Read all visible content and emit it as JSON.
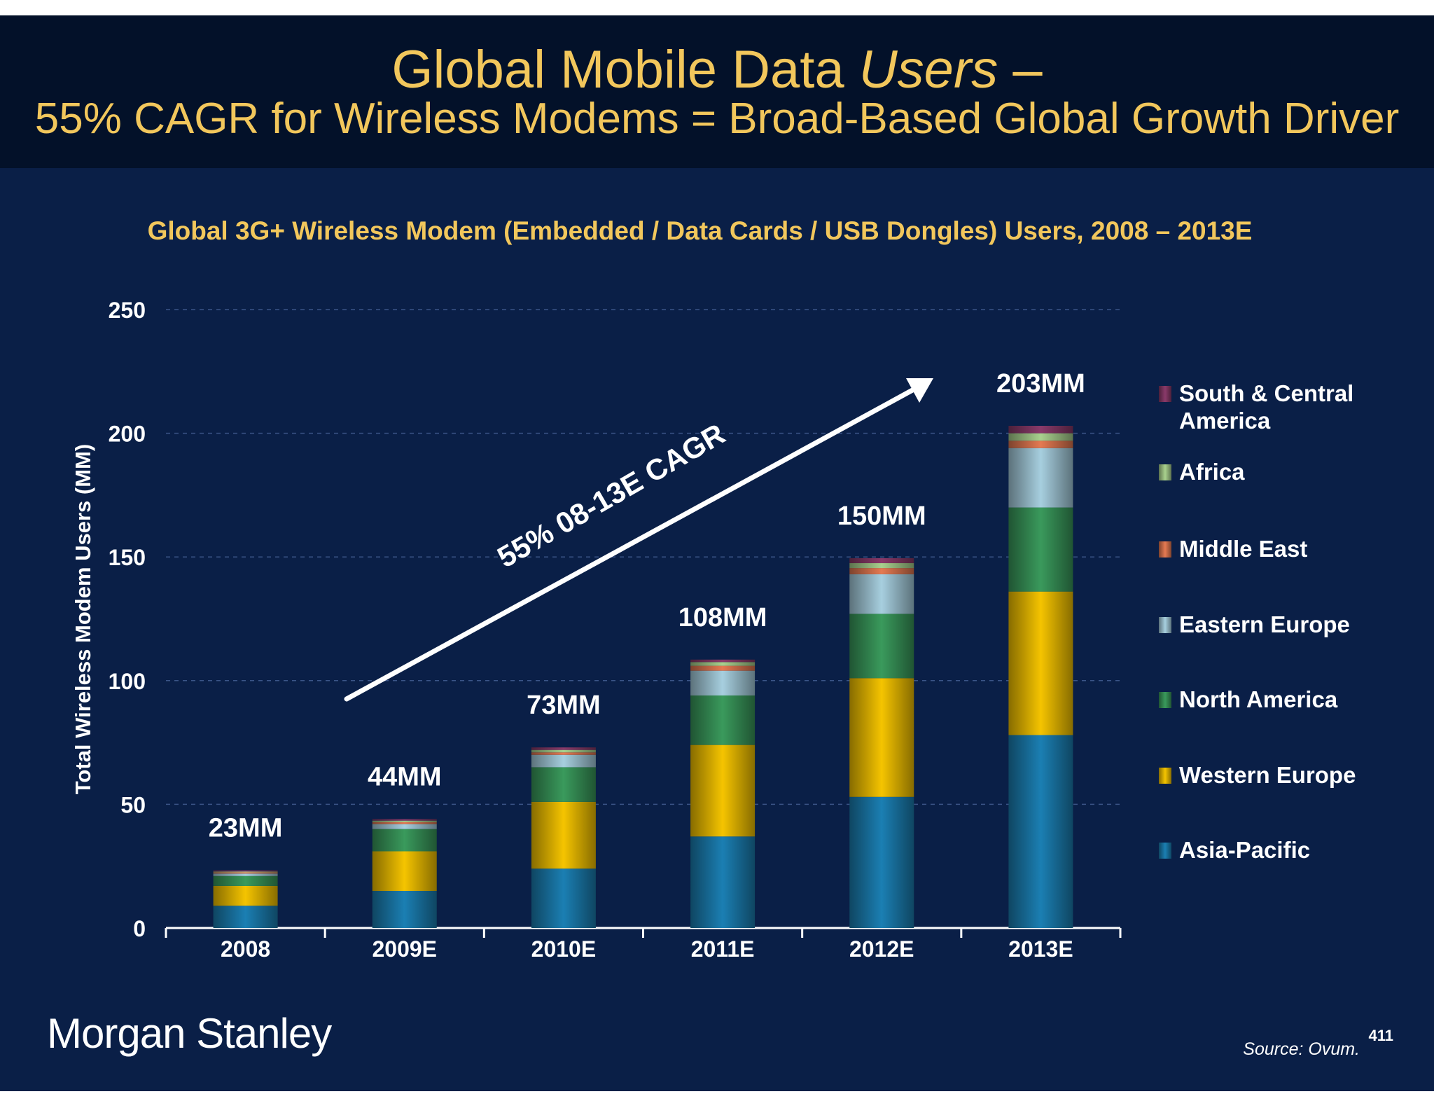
{
  "header": {
    "title_line1_plain": "Global Mobile Data ",
    "title_line1_italic": "Users",
    "title_line1_dash": " –",
    "title_line2": "55% CAGR for Wireless Modems = Broad-Based Global Growth Driver"
  },
  "chart_data": {
    "type": "bar",
    "stacked": true,
    "title": "Global 3G+ Wireless Modem (Embedded / Data Cards / USB Dongles) Users, 2008 – 2013E",
    "ylabel": "Total Wireless Modem Users (MM)",
    "xlabel": "",
    "ylim": [
      0,
      250
    ],
    "yticks": [
      0,
      50,
      100,
      150,
      200,
      250
    ],
    "grid": true,
    "legend_position": "right",
    "categories": [
      "2008",
      "2009E",
      "2010E",
      "2011E",
      "2012E",
      "2013E"
    ],
    "totals_labels": [
      "23MM",
      "44MM",
      "73MM",
      "108MM",
      "150MM",
      "203MM"
    ],
    "series": [
      {
        "name": "Asia-Pacific",
        "color": "#1b7fb3",
        "values": [
          9,
          15,
          24,
          37,
          53,
          78
        ]
      },
      {
        "name": "Western Europe",
        "color": "#f5c400",
        "values": [
          8,
          16,
          27,
          37,
          48,
          58
        ]
      },
      {
        "name": "North America",
        "color": "#3a9a5c",
        "values": [
          4,
          9,
          14,
          20,
          26,
          34
        ]
      },
      {
        "name": "Eastern Europe",
        "color": "#a7cfdf",
        "values": [
          1,
          2,
          5,
          10,
          16,
          24
        ]
      },
      {
        "name": "Middle East",
        "color": "#e57a52",
        "values": [
          0.5,
          0.8,
          1,
          2,
          2.5,
          3
        ]
      },
      {
        "name": "Africa",
        "color": "#a9d18e",
        "values": [
          0.3,
          0.6,
          1,
          1.5,
          2,
          3
        ]
      },
      {
        "name": "South & Central America",
        "color": "#8a3a6a",
        "values": [
          0.5,
          0.6,
          1,
          1,
          2,
          3
        ]
      }
    ],
    "legend_order": [
      "South & Central America",
      "Africa",
      "Middle East",
      "Eastern Europe",
      "North America",
      "Western Europe",
      "Asia-Pacific"
    ],
    "annotation": "55% 08-13E CAGR"
  },
  "footer": {
    "logo_text": "Morgan Stanley",
    "source": "Source: Ovum.",
    "page_number": "411"
  },
  "colors": {
    "background": "#0a1f47",
    "header_band": "#031129",
    "title_gold": "#f2c75c",
    "text_white": "#ffffff"
  }
}
